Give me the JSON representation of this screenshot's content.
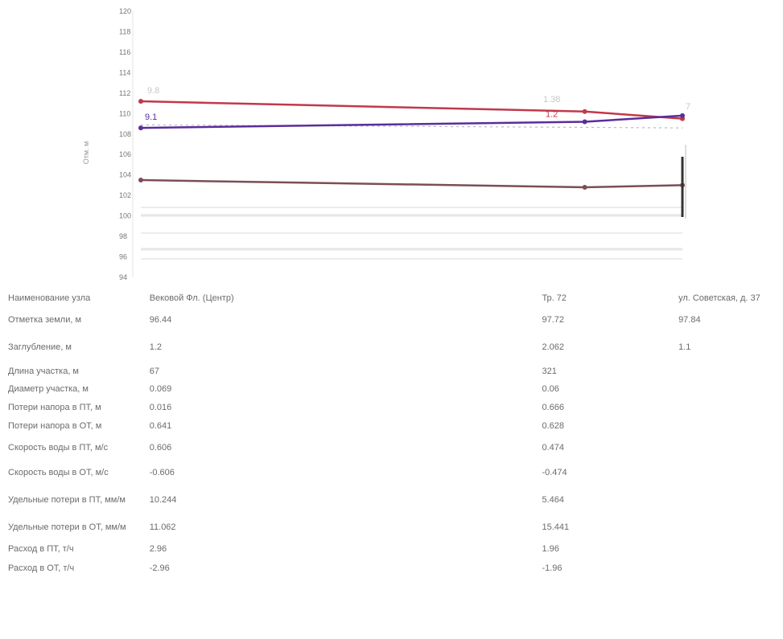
{
  "chart_data": {
    "type": "line",
    "ylabel": "Отм. м",
    "ylim": [
      94,
      120
    ],
    "y_ticks": [
      "94",
      "96",
      "98",
      "100",
      "102",
      "104",
      "106",
      "108",
      "110",
      "112",
      "114",
      "116",
      "118",
      "120"
    ],
    "x": [
      0,
      1,
      1.22
    ],
    "series": [
      {
        "values": [
          111.2,
          110.2,
          109.5
        ],
        "color": "#c0394b"
      },
      {
        "values": [
          108.6,
          109.2,
          109.8
        ],
        "color": "#5a2d9c"
      },
      {
        "values": [
          103.5,
          102.8,
          103.0
        ],
        "color": "#7a4f55"
      }
    ],
    "point_labels": [
      "9.8",
      "9.1",
      "1.38",
      "1.2",
      "7"
    ]
  },
  "table": {
    "rows": [
      {
        "label": "Наименование узла",
        "v1": "Вековой Фл. (Центр)",
        "v2": "Тр. 72",
        "v3": "ул. Советская, д. 37"
      },
      {
        "label": "Отметка земли, м",
        "v1": "96.44",
        "v2": "97.72",
        "v3": "97.84"
      },
      {
        "label": "Заглубление, м",
        "v1": "1.2",
        "v2": "2.062",
        "v3": "1.1"
      },
      {
        "label": "Длина участка, м",
        "v1": "67",
        "v2": "321",
        "v3": ""
      },
      {
        "label": "Диаметр участка, м",
        "v1": "0.069",
        "v2": "0.06",
        "v3": ""
      },
      {
        "label": "Потери напора в ПТ, м",
        "v1": "0.016",
        "v2": "0.666",
        "v3": ""
      },
      {
        "label": "Потери напора в ОТ, м",
        "v1": "0.641",
        "v2": "0.628",
        "v3": ""
      },
      {
        "label": "Скорость воды в ПТ, м/с",
        "v1": "0.606",
        "v2": "0.474",
        "v3": ""
      },
      {
        "label": "Скорость воды в ОТ, м/с",
        "v1": "-0.606",
        "v2": "-0.474",
        "v3": ""
      },
      {
        "label": "Удельные потери в ПТ, мм/м",
        "v1": "10.244",
        "v2": "5.464",
        "v3": ""
      },
      {
        "label": "Удельные потери в ОТ, мм/м",
        "v1": "11.062",
        "v2": "15.441",
        "v3": ""
      },
      {
        "label": "Расход в ПТ, т/ч",
        "v1": "2.96",
        "v2": "1.96",
        "v3": ""
      },
      {
        "label": "Расход в ОТ, т/ч",
        "v1": "-2.96",
        "v2": "-1.96",
        "v3": ""
      }
    ]
  }
}
